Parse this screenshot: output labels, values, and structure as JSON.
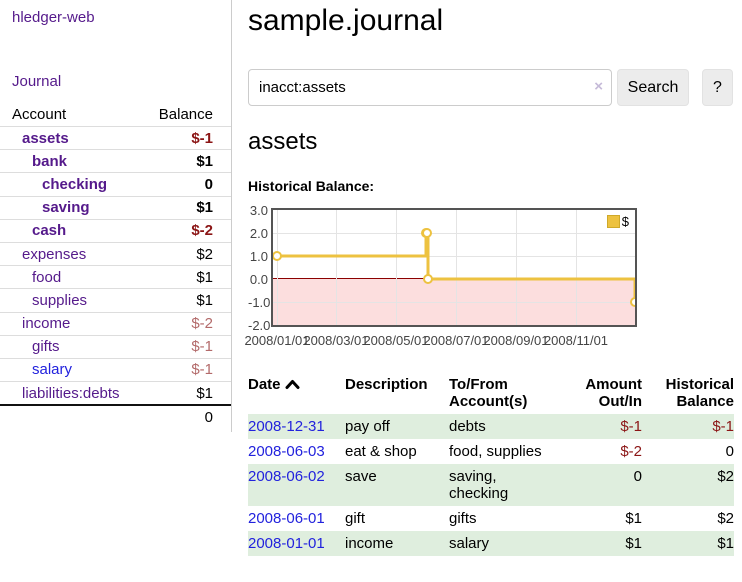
{
  "app": {
    "title": "hledger-web",
    "journal_link": "Journal"
  },
  "sidebar": {
    "table_headers": {
      "account": "Account",
      "balance": "Balance"
    },
    "accounts": [
      {
        "name": "assets",
        "depth": 1,
        "bold": true,
        "link_color": "purple",
        "balance": "$-1",
        "balance_style": "neg-strong"
      },
      {
        "name": "bank",
        "depth": 2,
        "bold": true,
        "link_color": "purple",
        "balance": "$1",
        "balance_style": "pos"
      },
      {
        "name": "checking",
        "depth": 3,
        "bold": true,
        "link_color": "purple",
        "balance": "0",
        "balance_style": "pos"
      },
      {
        "name": "saving",
        "depth": 3,
        "bold": true,
        "link_color": "purple",
        "balance": "$1",
        "balance_style": "pos"
      },
      {
        "name": "cash",
        "depth": 2,
        "bold": true,
        "link_color": "purple",
        "balance": "$-2",
        "balance_style": "neg-strong"
      },
      {
        "name": "expenses",
        "depth": 1,
        "bold": false,
        "link_color": "purple",
        "balance": "$2",
        "balance_style": "pos"
      },
      {
        "name": "food",
        "depth": 2,
        "bold": false,
        "link_color": "purple",
        "balance": "$1",
        "balance_style": "pos"
      },
      {
        "name": "supplies",
        "depth": 2,
        "bold": false,
        "link_color": "purple",
        "balance": "$1",
        "balance_style": "pos"
      },
      {
        "name": "income",
        "depth": 1,
        "bold": false,
        "link_color": "purple",
        "balance": "$-2",
        "balance_style": "neg-soft"
      },
      {
        "name": "gifts",
        "depth": 2,
        "bold": false,
        "link_color": "purple",
        "balance": "$-1",
        "balance_style": "neg-soft"
      },
      {
        "name": "salary",
        "depth": 2,
        "bold": false,
        "link_color": "blue",
        "balance": "$-1",
        "balance_style": "neg-soft"
      },
      {
        "name": "liabilities:debts",
        "depth": 1,
        "bold": false,
        "link_color": "purple",
        "balance": "$1",
        "balance_style": "pos"
      }
    ],
    "total": "0"
  },
  "header": {
    "title": "sample.journal"
  },
  "search": {
    "value": "inacct:assets",
    "clear_icon": "×",
    "button": "Search",
    "help_button": "?"
  },
  "account_page": {
    "heading": "assets",
    "chart_title": "Historical Balance:"
  },
  "chart_data": {
    "type": "line",
    "step": true,
    "title": "Historical Balance",
    "series": [
      {
        "name": "$",
        "points": [
          [
            "2008-01-01",
            1
          ],
          [
            "2008-06-01",
            2
          ],
          [
            "2008-06-02",
            2
          ],
          [
            "2008-06-03",
            0
          ],
          [
            "2008-12-31",
            -1
          ]
        ]
      }
    ],
    "ylim": [
      -2,
      3
    ],
    "yticks": [
      3.0,
      2.0,
      1.0,
      0.0,
      -1.0,
      -2.0
    ],
    "xticks": [
      "2008/01/01",
      "2008/03/01",
      "2008/05/01",
      "2008/07/01",
      "2008/09/01",
      "2008/11/01"
    ],
    "xlim": [
      "2008-01-01",
      "2008-12-31"
    ],
    "grid": true,
    "legend_position": "top-right",
    "negative_region_shaded": true,
    "line_color": "#edc240",
    "negative_region_color": "#fcdede",
    "zero_line_color": "#8b0000"
  },
  "register_table": {
    "headers": {
      "date": "Date",
      "description": "Description",
      "tofrom": "To/From\nAccount(s)",
      "amount": "Amount\nOut/In",
      "balance": "Historical\nBalance"
    },
    "rows": [
      {
        "date": "2008-12-31",
        "description": "pay off",
        "tofrom": "debts",
        "amount": "$-1",
        "amount_neg": true,
        "balance": "$-1",
        "balance_neg": true,
        "highlight": true
      },
      {
        "date": "2008-06-03",
        "description": "eat & shop",
        "tofrom": "food, supplies",
        "amount": "$-2",
        "amount_neg": true,
        "balance": "0",
        "balance_neg": false,
        "highlight": false
      },
      {
        "date": "2008-06-02",
        "description": "save",
        "tofrom": "saving,\nchecking",
        "amount": "0",
        "amount_neg": false,
        "balance": "$2",
        "balance_neg": false,
        "highlight": true
      },
      {
        "date": "2008-06-01",
        "description": "gift",
        "tofrom": "gifts",
        "amount": "$1",
        "amount_neg": false,
        "balance": "$2",
        "balance_neg": false,
        "highlight": false
      },
      {
        "date": "2008-01-01",
        "description": "income",
        "tofrom": "salary",
        "amount": "$1",
        "amount_neg": false,
        "balance": "$1",
        "balance_neg": false,
        "highlight": true
      }
    ]
  },
  "colors": {
    "link_purple": "#551a8b",
    "link_blue": "#2222dd",
    "negative_strong": "#8b1515",
    "negative_soft": "#b36a6a",
    "row_highlight_green": "#dfeede",
    "chart_gold": "#edc240",
    "chart_negative_pink": "#fcdede"
  }
}
